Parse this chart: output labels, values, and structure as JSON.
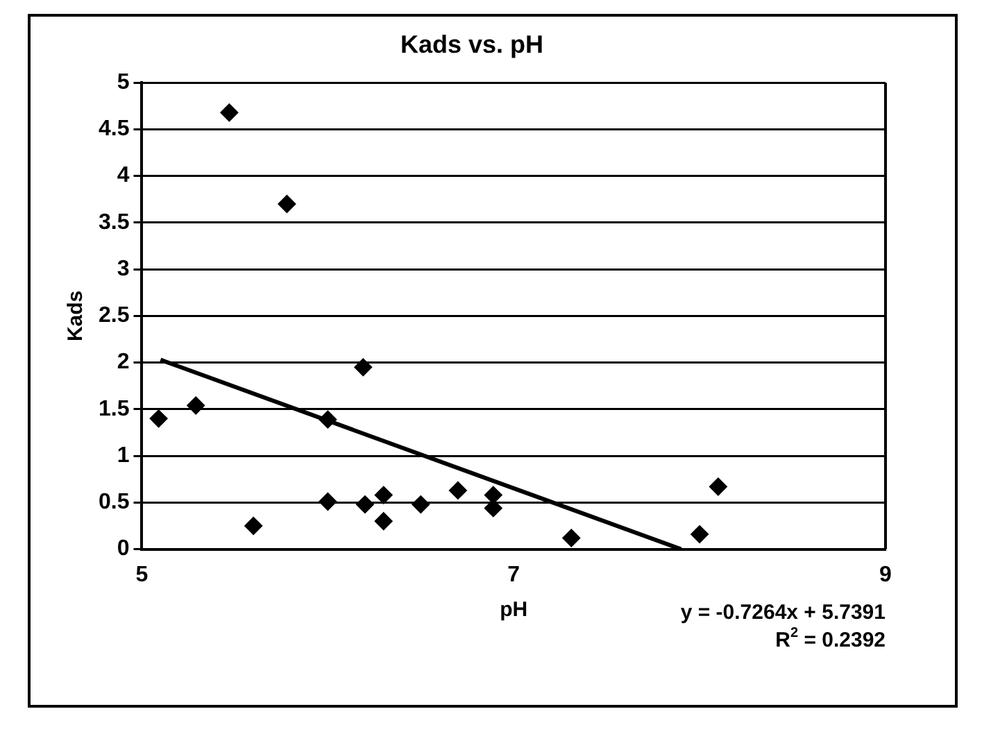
{
  "chart_data": {
    "type": "scatter",
    "title": "Kads vs. pH",
    "xlabel": "pH",
    "ylabel": "Kads",
    "xlim": [
      5,
      9
    ],
    "xticks": [
      5,
      7,
      9
    ],
    "ylim": [
      0,
      5
    ],
    "yticks": [
      0,
      0.5,
      1,
      1.5,
      2,
      2.5,
      3,
      3.5,
      4,
      4.5,
      5
    ],
    "grid": "y",
    "legend": false,
    "marker": "diamond",
    "annotations": [
      "y = -0.7264x + 5.7391",
      "R$^{2}$ = 0.2392"
    ],
    "series": [
      {
        "type": "scatter",
        "color": "#000000",
        "x": [
          5.09,
          5.29,
          5.6,
          5.47,
          5.78,
          6.19,
          6.0,
          6.0,
          6.2,
          6.3,
          6.3,
          6.5,
          6.7,
          6.89,
          6.89,
          7.31,
          8.0,
          8.1
        ],
        "values": [
          1.4,
          1.54,
          0.25,
          4.68,
          3.7,
          1.95,
          1.39,
          0.51,
          0.48,
          0.58,
          0.3,
          0.48,
          0.63,
          0.44,
          0.58,
          0.12,
          0.16,
          0.67
        ]
      },
      {
        "type": "line",
        "color": "#000000",
        "marker": "none",
        "x": [
          5.1,
          7.9
        ],
        "values": [
          2.03,
          0.0
        ]
      }
    ]
  }
}
